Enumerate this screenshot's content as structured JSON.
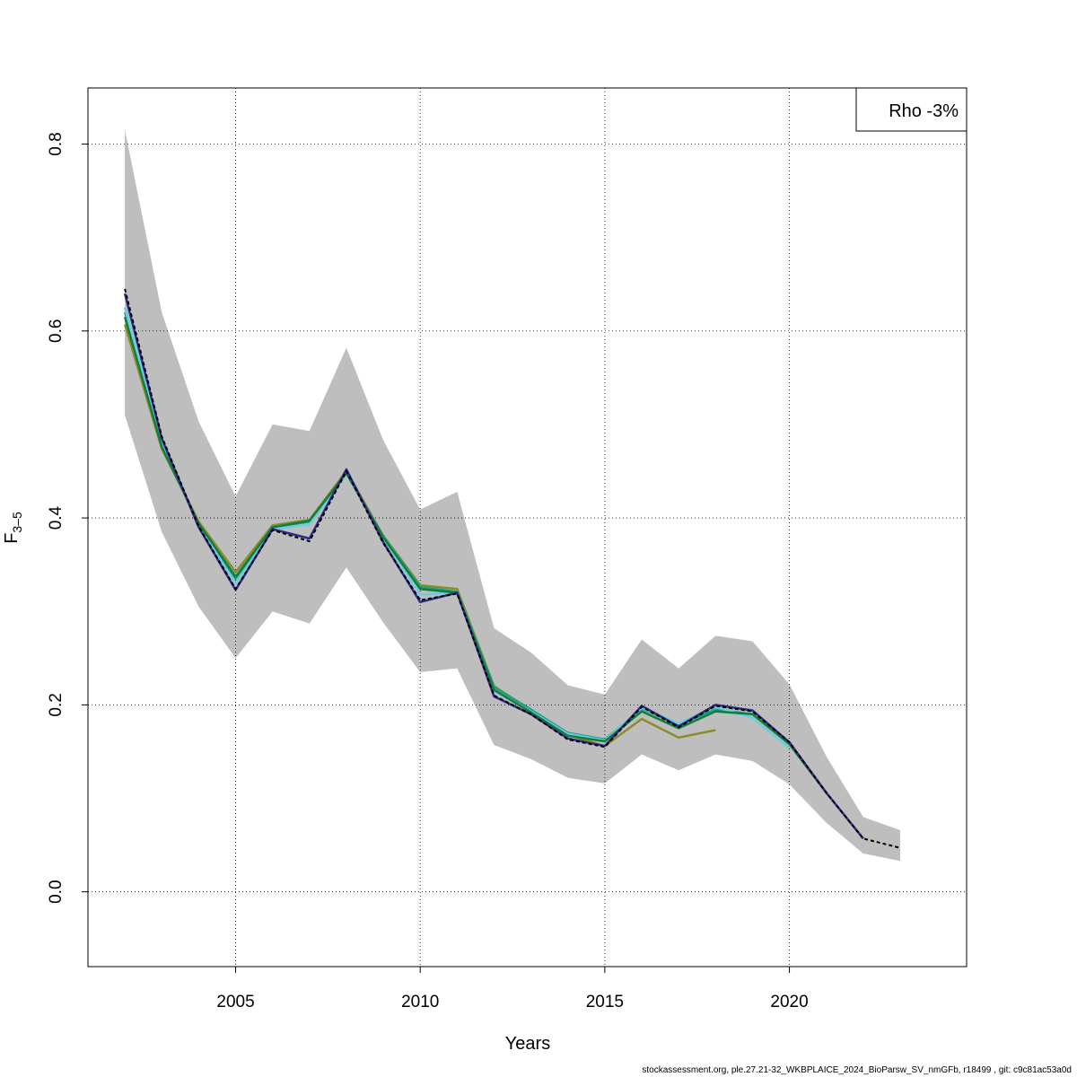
{
  "chart_data": {
    "type": "line",
    "title": "",
    "xlabel": "Years",
    "ylabel_main": "F",
    "ylabel_sub": "3–5",
    "xlim": [
      2001,
      2024.8
    ],
    "ylim": [
      -0.08,
      0.86
    ],
    "x_ticks": [
      "2005",
      "2010",
      "2015",
      "2020"
    ],
    "y_ticks": [
      "0.0",
      "0.2",
      "0.4",
      "0.6",
      "0.8"
    ],
    "grid": true,
    "legend": {
      "position": "top-right",
      "text": "Rho -3%"
    },
    "confidence_band": {
      "color": "#bebebe",
      "x": [
        2002,
        2003,
        2004,
        2005,
        2006,
        2007,
        2008,
        2009,
        2010,
        2011,
        2012,
        2013,
        2014,
        2015,
        2016,
        2017,
        2018,
        2019,
        2020,
        2021,
        2022,
        2023
      ],
      "lower": [
        0.51,
        0.385,
        0.305,
        0.25,
        0.3,
        0.287,
        0.347,
        0.288,
        0.235,
        0.239,
        0.157,
        0.142,
        0.122,
        0.116,
        0.147,
        0.13,
        0.147,
        0.14,
        0.115,
        0.074,
        0.041,
        0.033
      ],
      "upper": [
        0.815,
        0.62,
        0.503,
        0.423,
        0.5,
        0.493,
        0.582,
        0.483,
        0.409,
        0.428,
        0.282,
        0.256,
        0.221,
        0.211,
        0.27,
        0.239,
        0.274,
        0.268,
        0.222,
        0.145,
        0.08,
        0.066
      ]
    },
    "series": [
      {
        "color": "#8c8c2a",
        "dashed": false,
        "x": [
          2002,
          2003,
          2004,
          2005,
          2006,
          2007,
          2008,
          2009,
          2010,
          2011,
          2012,
          2013,
          2014,
          2015,
          2016,
          2017,
          2018
        ],
        "values": [
          0.607,
          0.474,
          0.396,
          0.342,
          0.392,
          0.398,
          0.45,
          0.381,
          0.328,
          0.324,
          0.22,
          0.194,
          0.168,
          0.156,
          0.185,
          0.165,
          0.173
        ]
      },
      {
        "color": "#1f9e89",
        "dashed": false,
        "x": [
          2002,
          2003,
          2004,
          2005,
          2006,
          2007,
          2008,
          2009,
          2010,
          2011,
          2012,
          2013,
          2014,
          2015,
          2016,
          2017,
          2018,
          2019
        ],
        "values": [
          0.62,
          0.478,
          0.393,
          0.335,
          0.39,
          0.396,
          0.448,
          0.38,
          0.326,
          0.321,
          0.219,
          0.195,
          0.17,
          0.163,
          0.196,
          0.179,
          0.195,
          0.19
        ]
      },
      {
        "color": "#6ecce0",
        "dashed": false,
        "x": [
          2002,
          2003,
          2004,
          2005,
          2006,
          2007,
          2008,
          2009,
          2010,
          2011,
          2012,
          2013,
          2014,
          2015,
          2016,
          2017,
          2018,
          2019,
          2020
        ],
        "values": [
          0.625,
          0.48,
          0.392,
          0.33,
          0.388,
          0.393,
          0.447,
          0.378,
          0.318,
          0.32,
          0.215,
          0.193,
          0.169,
          0.162,
          0.197,
          0.18,
          0.198,
          0.186,
          0.154
        ]
      },
      {
        "color": "#0f7f3a",
        "dashed": false,
        "x": [
          2002,
          2003,
          2004,
          2005,
          2006,
          2007,
          2008,
          2009,
          2010,
          2011,
          2012,
          2013,
          2014,
          2015,
          2016,
          2017,
          2018,
          2019,
          2020,
          2021
        ],
        "values": [
          0.615,
          0.476,
          0.394,
          0.337,
          0.39,
          0.397,
          0.448,
          0.379,
          0.324,
          0.32,
          0.216,
          0.192,
          0.167,
          0.161,
          0.193,
          0.175,
          0.193,
          0.19,
          0.158,
          0.106
        ]
      },
      {
        "color": "#2e2b84",
        "dashed": false,
        "x": [
          2002,
          2003,
          2004,
          2005,
          2006,
          2007,
          2008,
          2009,
          2010,
          2011,
          2012,
          2013,
          2014,
          2015,
          2016,
          2017,
          2018,
          2019,
          2020,
          2021,
          2022
        ],
        "values": [
          0.64,
          0.485,
          0.39,
          0.323,
          0.388,
          0.378,
          0.452,
          0.374,
          0.31,
          0.32,
          0.209,
          0.19,
          0.164,
          0.156,
          0.199,
          0.177,
          0.2,
          0.194,
          0.16,
          0.106,
          0.057
        ]
      },
      {
        "color": "#000000",
        "dashed": true,
        "x": [
          2002,
          2003,
          2004,
          2005,
          2006,
          2007,
          2008,
          2009,
          2010,
          2011,
          2012,
          2013,
          2014,
          2015,
          2016,
          2017,
          2018,
          2019,
          2020,
          2021,
          2022,
          2023
        ],
        "values": [
          0.645,
          0.487,
          0.391,
          0.324,
          0.387,
          0.375,
          0.45,
          0.373,
          0.312,
          0.319,
          0.21,
          0.19,
          0.163,
          0.155,
          0.198,
          0.176,
          0.199,
          0.193,
          0.16,
          0.106,
          0.057,
          0.047
        ]
      }
    ]
  },
  "footer": "stockassessment.org, ple.27.21-32_WKBPLAICE_2024_BioParsw_SV_nmGFb, r18499 , git: c9c81ac53a0d"
}
